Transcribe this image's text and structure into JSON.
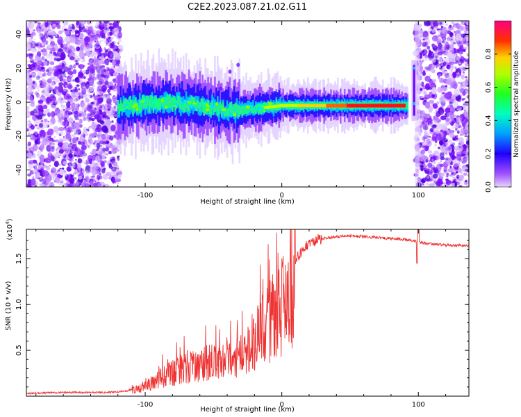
{
  "title": "C2E2.2023.087.21.02.G11",
  "chart_data": [
    {
      "type": "heatmap",
      "xlabel": "Height of straight line (km)",
      "ylabel": "Frequency (Hz)",
      "xlim": [
        -187,
        137
      ],
      "ylim": [
        -50,
        48
      ],
      "xticks": [
        -100,
        0,
        100
      ],
      "yticks": [
        -40,
        -20,
        0,
        20,
        40
      ],
      "colorbar": {
        "label": "Normalized spectral amplitude",
        "range": [
          0,
          1
        ],
        "ticks": [
          0.0,
          0.2,
          0.4,
          0.6,
          0.8
        ],
        "colormap": [
          "#d9b3ff",
          "#8000ff",
          "#0000ff",
          "#00c0ff",
          "#00ffa0",
          "#20ff00",
          "#c0ff00",
          "#ffc000",
          "#ff2000",
          "#ff0080"
        ]
      },
      "ridge": [
        {
          "x": -120,
          "y": -3
        },
        {
          "x": -100,
          "y": -1
        },
        {
          "x": -80,
          "y": 0
        },
        {
          "x": -60,
          "y": -2
        },
        {
          "x": -40,
          "y": -5
        },
        {
          "x": -20,
          "y": -4
        },
        {
          "x": 0,
          "y": -2
        },
        {
          "x": 20,
          "y": -2
        },
        {
          "x": 50,
          "y": -2
        },
        {
          "x": 80,
          "y": -2
        },
        {
          "x": 92,
          "y": -2
        }
      ],
      "spike": {
        "x": 97,
        "y_range": [
          -8,
          22
        ]
      },
      "noise_regions": [
        [
          -187,
          -118
        ],
        [
          98,
          137
        ]
      ]
    },
    {
      "type": "line",
      "xlabel": "Height of straight line (km)",
      "ylabel": "SNR (10 * v/v)",
      "y_multiplier": "(x10",
      "y_multiplier_exp": "4",
      "y_multiplier_close": ")",
      "xlim": [
        -187,
        137
      ],
      "ylim": [
        0,
        1.82
      ],
      "xticks": [
        -100,
        0,
        100
      ],
      "yticks": [
        0.5,
        1.0,
        1.5
      ],
      "series": [
        {
          "color": "#ee3333",
          "x": [
            -187,
            -160,
            -130,
            -115,
            -105,
            -95,
            -85,
            -75,
            -65,
            -55,
            -45,
            -35,
            -28,
            -22,
            -16,
            -10,
            -5,
            0,
            5,
            10,
            15,
            20,
            30,
            40,
            50,
            60,
            70,
            80,
            90,
            95,
            100,
            110,
            120,
            137
          ],
          "y": [
            0.03,
            0.04,
            0.04,
            0.05,
            0.1,
            0.18,
            0.28,
            0.35,
            0.4,
            0.45,
            0.5,
            0.55,
            0.62,
            0.72,
            0.85,
            1.0,
            1.1,
            1.22,
            1.35,
            1.48,
            1.6,
            1.68,
            1.72,
            1.74,
            1.75,
            1.74,
            1.73,
            1.72,
            1.71,
            1.7,
            1.68,
            1.66,
            1.65,
            1.64
          ]
        }
      ]
    }
  ]
}
